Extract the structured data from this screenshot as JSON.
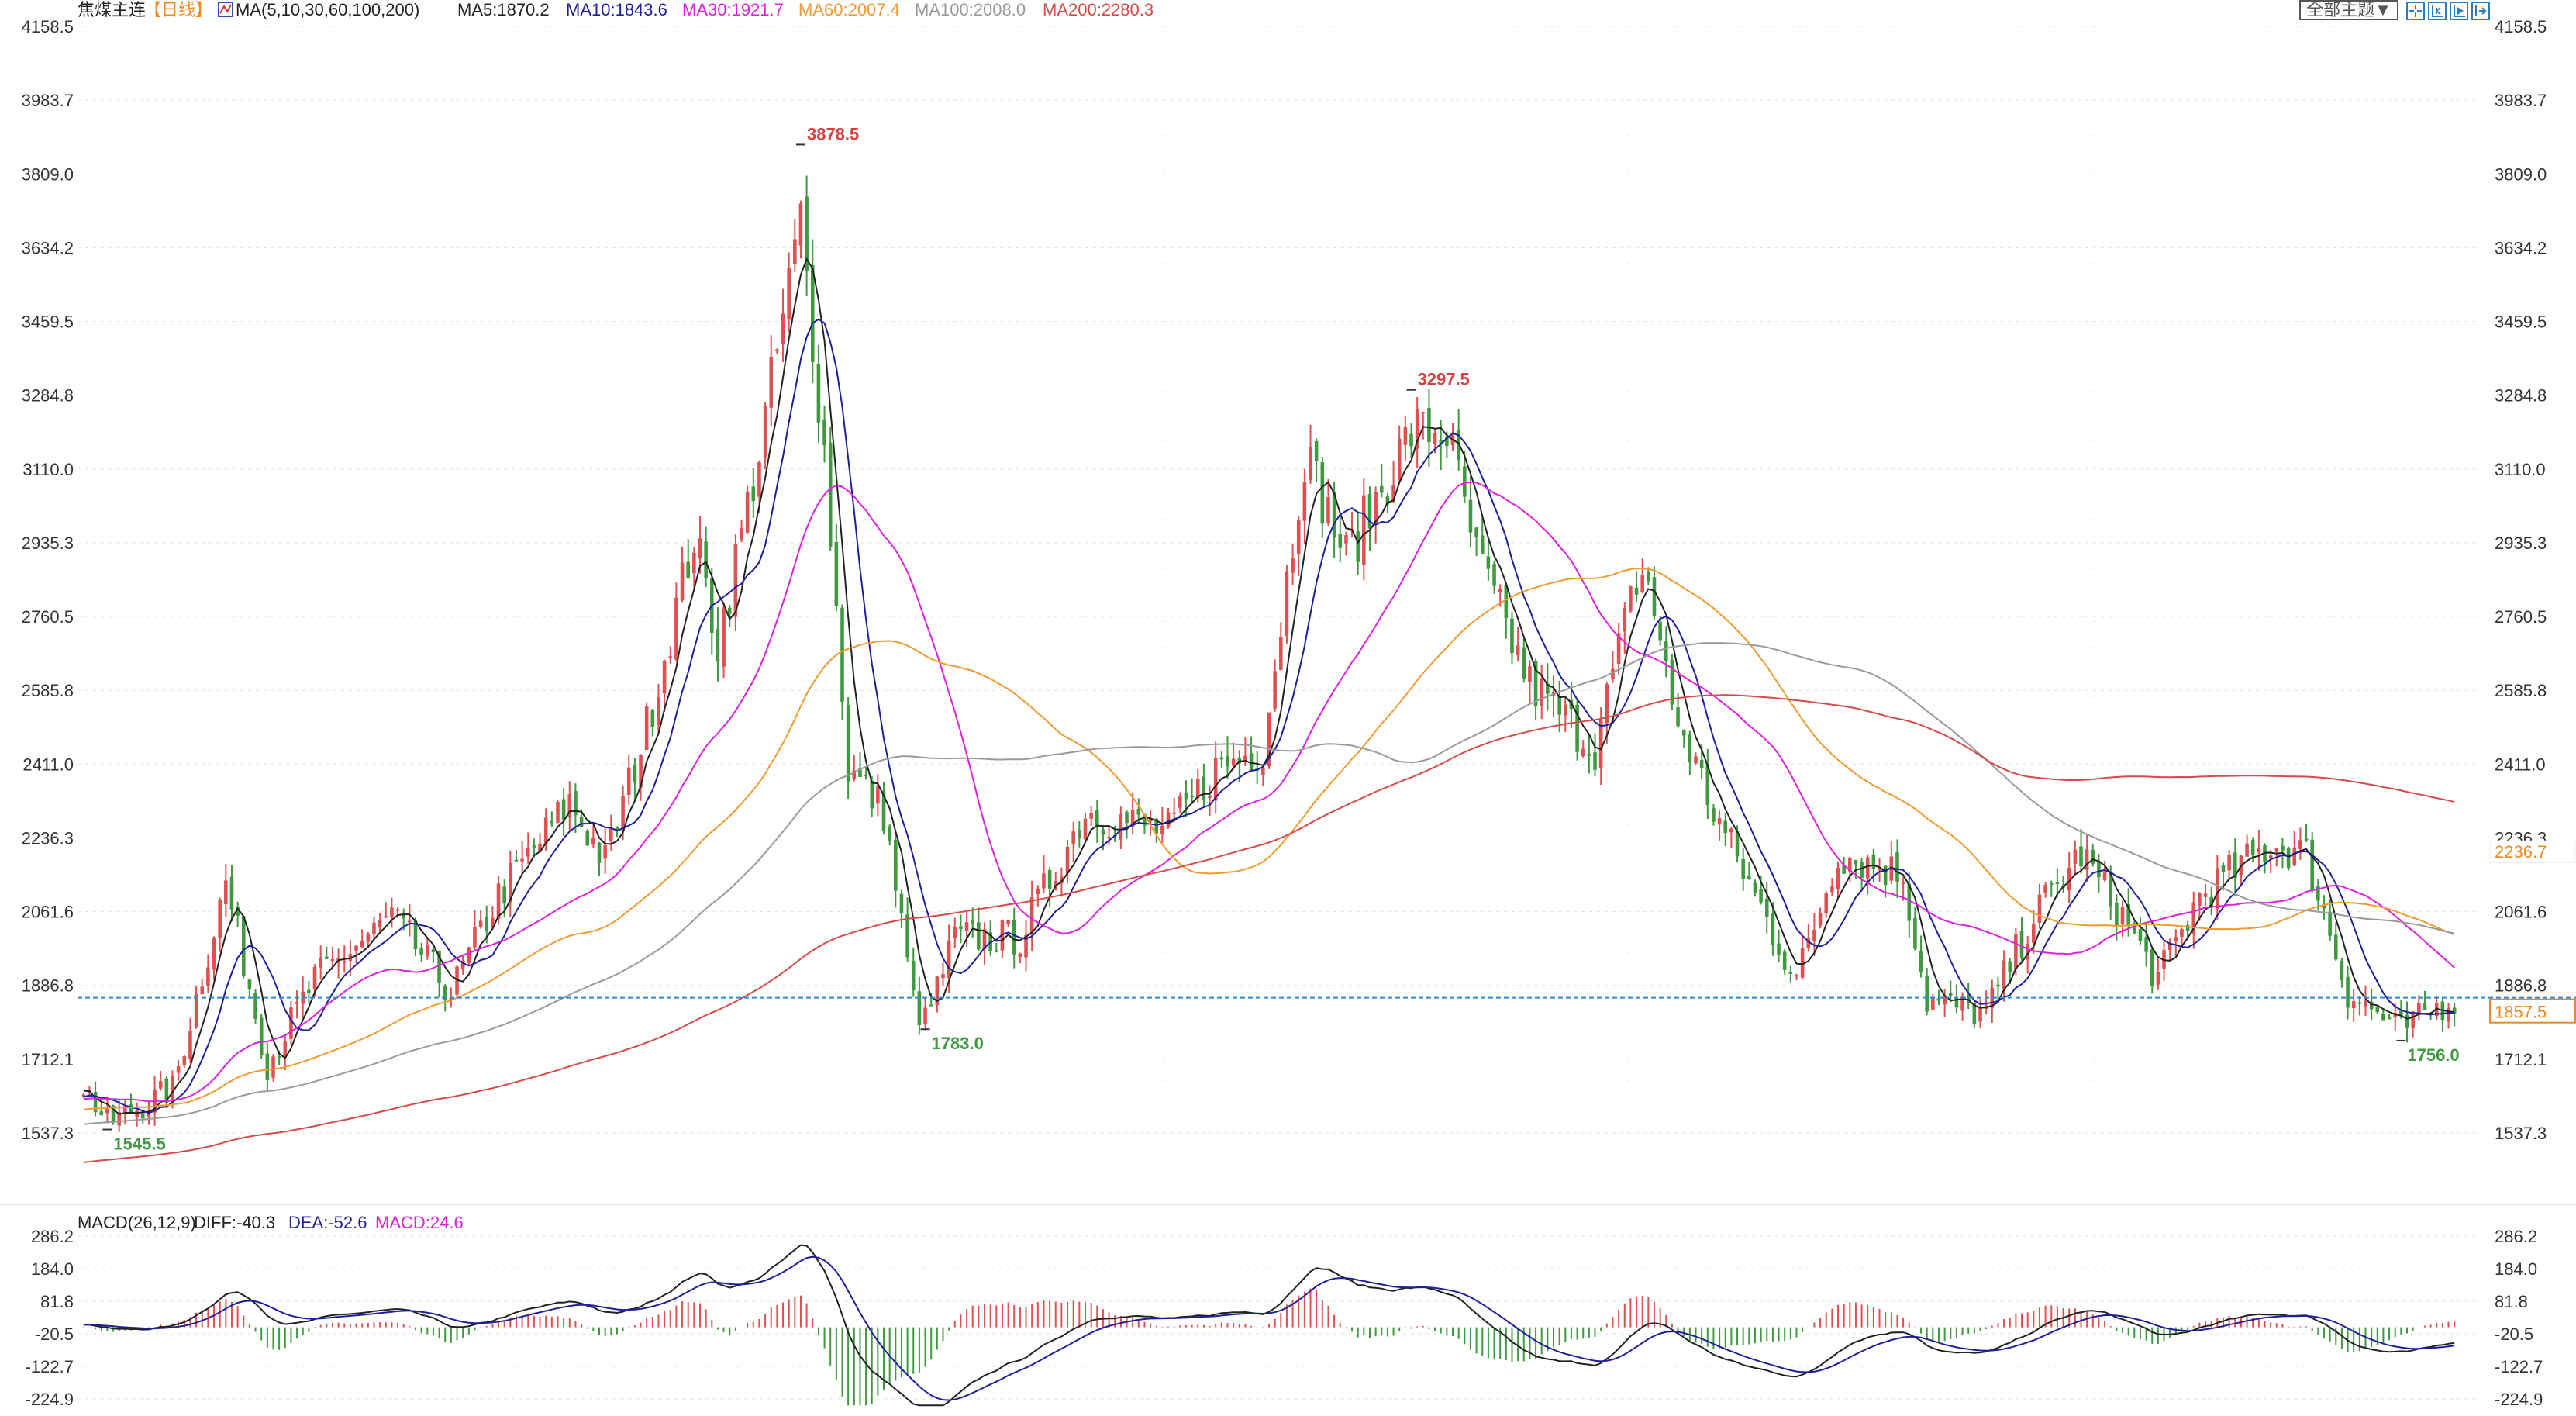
{
  "header": {
    "symbol": "焦煤主连",
    "period": "【日线】",
    "ma_params": "MA(5,10,30,60,100,200)",
    "ma_values": [
      {
        "label": "MA5:1870.2",
        "color": "#222222"
      },
      {
        "label": "MA10:1843.6",
        "color": "#1f1f9e"
      },
      {
        "label": "MA30:1921.7",
        "color": "#e020e0"
      },
      {
        "label": "MA60:2007.4",
        "color": "#f09a30"
      },
      {
        "label": "MA100:2008.0",
        "color": "#9a9a9a"
      },
      {
        "label": "MA200:2280.3",
        "color": "#d84a4a"
      }
    ]
  },
  "toolbar": {
    "theme_label": "全部主题▼",
    "buttons": [
      "crosshair",
      "zoom-start",
      "play",
      "go-end"
    ]
  },
  "macd_header": {
    "params": "MACD(26,12,9)",
    "diff": "DIFF:-40.3",
    "dea": "DEA:-52.6",
    "macd": "MACD:24.6"
  },
  "chart_data": {
    "type": "candlestick",
    "title": "焦煤主连 日线",
    "ylim": [
      1450,
      4158.5
    ],
    "y_ticks": [
      "4158.5",
      "3983.7",
      "3809.0",
      "3634.2",
      "3459.5",
      "3284.8",
      "3110.0",
      "2935.3",
      "2760.5",
      "2585.8",
      "2411.0",
      "2236.3",
      "2061.6",
      "1886.8",
      "1712.1",
      "1537.3"
    ],
    "y_tick_values": [
      4158.5,
      3983.7,
      3809.0,
      3634.2,
      3459.5,
      3284.8,
      3110.0,
      2935.3,
      2760.5,
      2585.8,
      2411.0,
      2236.3,
      2061.6,
      1886.8,
      1712.1,
      1537.3
    ],
    "close_keypoints": [
      [
        0,
        1650
      ],
      [
        4,
        1560
      ],
      [
        15,
        1640
      ],
      [
        24,
        2130
      ],
      [
        31,
        1700
      ],
      [
        39,
        1900
      ],
      [
        52,
        2050
      ],
      [
        62,
        1870
      ],
      [
        70,
        2100
      ],
      [
        82,
        2320
      ],
      [
        88,
        2180
      ],
      [
        95,
        2500
      ],
      [
        103,
        2950
      ],
      [
        107,
        2700
      ],
      [
        114,
        3150
      ],
      [
        121,
        3700
      ],
      [
        125,
        3150
      ],
      [
        129,
        2400
      ],
      [
        135,
        2300
      ],
      [
        140,
        1850
      ],
      [
        142,
        1800
      ],
      [
        147,
        2000
      ],
      [
        158,
        2000
      ],
      [
        169,
        2300
      ],
      [
        183,
        2250
      ],
      [
        191,
        2400
      ],
      [
        199,
        2450
      ],
      [
        206,
        3150
      ],
      [
        213,
        2900
      ],
      [
        224,
        3200
      ],
      [
        230,
        3200
      ],
      [
        235,
        2900
      ],
      [
        244,
        2600
      ],
      [
        255,
        2450
      ],
      [
        262,
        2850
      ],
      [
        264,
        2850
      ],
      [
        268,
        2550
      ],
      [
        275,
        2300
      ],
      [
        289,
        1900
      ],
      [
        296,
        2200
      ],
      [
        307,
        2150
      ],
      [
        311,
        1850
      ],
      [
        321,
        1820
      ],
      [
        329,
        2050
      ],
      [
        337,
        2200
      ],
      [
        344,
        2050
      ],
      [
        350,
        1900
      ],
      [
        357,
        2100
      ],
      [
        369,
        2220
      ],
      [
        375,
        2200
      ],
      [
        382,
        1870
      ],
      [
        391,
        1780
      ],
      [
        400,
        1860
      ]
    ],
    "annotations": [
      {
        "label": "3878.5",
        "day": 121,
        "value": 3878.5,
        "kind": "high"
      },
      {
        "label": "3297.5",
        "day": 224,
        "value": 3297.5,
        "kind": "high"
      },
      {
        "label": "1545.5",
        "day": 4,
        "value": 1545.5,
        "kind": "low"
      },
      {
        "label": "1783.0",
        "day": 142,
        "value": 1783.0,
        "kind": "low"
      },
      {
        "label": "1756.0",
        "day": 391,
        "value": 1756.0,
        "kind": "low"
      }
    ],
    "current_price": {
      "label": "1857.5",
      "value": 1857.5
    },
    "marker_price": {
      "label": "2236.7",
      "value": 2236.7
    },
    "macd": {
      "ylim": [
        -260,
        300
      ],
      "y_ticks": [
        "286.2",
        "184.0",
        "81.8",
        "-20.5",
        "-122.7",
        "-224.9"
      ],
      "y_tick_values": [
        286.2,
        184.0,
        81.8,
        -20.5,
        -122.7,
        -224.9
      ]
    },
    "colors": {
      "up": "#e05050",
      "down": "#3f9a3f",
      "ma5": "#222222",
      "ma10": "#1f1f9e",
      "ma30": "#e020e0",
      "ma60": "#f09a30",
      "ma100": "#9a9a9a",
      "ma200": "#d84a4a",
      "current": "#2a8ad8",
      "label_orange": "#f08a20"
    }
  }
}
